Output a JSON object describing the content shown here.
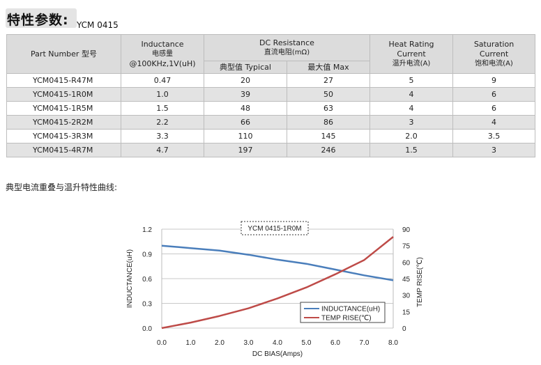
{
  "section_title": "特性参数:",
  "model": "YCM 0415",
  "table": {
    "headers": {
      "part_number": "Part Number  型号",
      "inductance_en": "Inductance",
      "inductance_cn": "电感量",
      "inductance_cond": "@100KHz,1V(uH)",
      "dcr_en": "DC Resistance",
      "dcr_cn": "直流电阻(mΩ)",
      "dcr_typ": "典型值 Typical",
      "dcr_max": "最大值 Max",
      "heat_en1": "Heat Rating",
      "heat_en2": "Current",
      "heat_cn": "温升电流(A)",
      "sat_en1": "Saturation",
      "sat_en2": "Current",
      "sat_cn": "饱和电流(A)"
    },
    "rows": [
      [
        "YCM0415-R47M",
        "0.47",
        "20",
        "27",
        "5",
        "9"
      ],
      [
        "YCM0415-1R0M",
        "1.0",
        "39",
        "50",
        "4",
        "6"
      ],
      [
        "YCM0415-1R5M",
        "1.5",
        "48",
        "63",
        "4",
        "6"
      ],
      [
        "YCM0415-2R2M",
        "2.2",
        "66",
        "86",
        "3",
        "4"
      ],
      [
        "YCM0415-3R3M",
        "3.3",
        "110",
        "145",
        "2.0",
        "3.5"
      ],
      [
        "YCM0415-4R7M",
        "4.7",
        "197",
        "246",
        "1.5",
        "3"
      ]
    ]
  },
  "curve_title": "典型电流重叠与温升特性曲线:",
  "chart_data": {
    "type": "line",
    "title": "YCM 0415-1R0M",
    "xlabel": "DC BIAS(Amps)",
    "ylabel_left": "INDUCTANCE(uH)",
    "ylabel_right": "TEMP RISE(℃)",
    "xlim": [
      0,
      8
    ],
    "ylim_left": [
      0,
      1.2
    ],
    "ylim_right": [
      0,
      90
    ],
    "x_ticks": [
      "0.0",
      "1.0",
      "2.0",
      "3.0",
      "4.0",
      "5.0",
      "6.0",
      "7.0",
      "8.0"
    ],
    "y_ticks_left": [
      "0.0",
      "0.3",
      "0.6",
      "0.9",
      "1.2"
    ],
    "y_ticks_right": [
      "0",
      "15",
      "30",
      "45",
      "60",
      "75",
      "90"
    ],
    "grid": true,
    "legend_position": "bottom-right",
    "series": [
      {
        "name": "INDUCTANCE(uH)",
        "axis": "left",
        "color": "#4a7ebb",
        "x": [
          0,
          1,
          2,
          3,
          4,
          5,
          6,
          7,
          8
        ],
        "y": [
          1.0,
          0.97,
          0.94,
          0.89,
          0.83,
          0.78,
          0.71,
          0.64,
          0.58
        ]
      },
      {
        "name": "TEMP RISE(℃)",
        "axis": "right",
        "color": "#be4b48",
        "x": [
          0,
          1,
          2,
          3,
          4,
          5,
          6,
          7,
          8
        ],
        "y": [
          0,
          5,
          11,
          18,
          27,
          37,
          49,
          62,
          83
        ]
      }
    ]
  }
}
